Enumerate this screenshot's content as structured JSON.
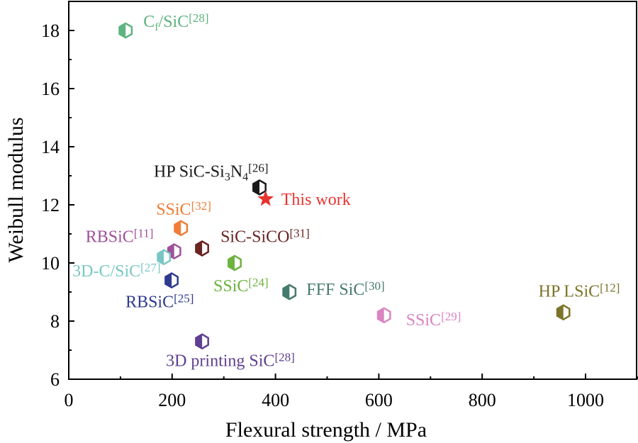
{
  "chart_data": {
    "type": "scatter",
    "title": "",
    "xlabel": "Flexural strength / MPa",
    "ylabel": "Weibull modulus",
    "xlim": [
      0,
      1100
    ],
    "ylim": [
      6,
      19
    ],
    "xticks": [
      "0",
      "200",
      "400",
      "600",
      "800",
      "1000"
    ],
    "xtick_values": [
      0,
      200,
      400,
      600,
      800,
      1000
    ],
    "yticks": [
      "6",
      "8",
      "10",
      "12",
      "14",
      "16",
      "18"
    ],
    "ytick_values": [
      6,
      8,
      10,
      12,
      14,
      16,
      18
    ],
    "grid": false,
    "points": [
      {
        "id": "cf-sic-28",
        "x": 110,
        "y": 18.0,
        "color": "#5db47f",
        "marker": "hexagon",
        "label": [
          {
            "t": "C"
          },
          {
            "t": "f",
            "sub": true
          },
          {
            "t": "/SiC"
          },
          {
            "t": "[28]",
            "sup": true
          }
        ]
      },
      {
        "id": "hp-sic-si3n4-26",
        "x": 369,
        "y": 12.6,
        "color": "#1a1a1a",
        "marker": "hexagon",
        "label": [
          {
            "t": "HP SiC-Si"
          },
          {
            "t": "3",
            "sub": true
          },
          {
            "t": "N"
          },
          {
            "t": "4",
            "sub": true
          },
          {
            "t": "[26]",
            "sup": true
          }
        ]
      },
      {
        "id": "this-work",
        "x": 381,
        "y": 12.2,
        "color": "#e8332f",
        "marker": "star",
        "label": [
          {
            "t": "This work"
          }
        ]
      },
      {
        "id": "ssic-32",
        "x": 217,
        "y": 11.2,
        "color": "#f07c35",
        "marker": "hexagon",
        "label": [
          {
            "t": "SSiC"
          },
          {
            "t": "[32]",
            "sup": true
          }
        ]
      },
      {
        "id": "rbsic-11",
        "x": 204,
        "y": 10.4,
        "color": "#a0509a",
        "marker": "hexagon",
        "label": [
          {
            "t": "RBSiC"
          },
          {
            "t": "[11]",
            "sup": true
          }
        ]
      },
      {
        "id": "sic-sico-31",
        "x": 258,
        "y": 10.5,
        "color": "#6b2424",
        "marker": "hexagon",
        "label": [
          {
            "t": "SiC-SiCO"
          },
          {
            "t": "[31]",
            "sup": true
          }
        ]
      },
      {
        "id": "3d-c-sic-27",
        "x": 184,
        "y": 10.2,
        "color": "#79c7c5",
        "marker": "hexagon",
        "label": [
          {
            "t": "3D-C/SiC"
          },
          {
            "t": "[27]",
            "sup": true
          }
        ]
      },
      {
        "id": "ssic-24",
        "x": 321,
        "y": 10.0,
        "color": "#6db33f",
        "marker": "hexagon",
        "label": [
          {
            "t": "SSiC"
          },
          {
            "t": "[24]",
            "sup": true
          }
        ]
      },
      {
        "id": "rbsic-25",
        "x": 199,
        "y": 9.4,
        "color": "#2f3b8f",
        "marker": "hexagon",
        "label": [
          {
            "t": "RBSiC"
          },
          {
            "t": "[25]",
            "sup": true
          }
        ]
      },
      {
        "id": "fff-sic-30",
        "x": 427,
        "y": 9.0,
        "color": "#457a6e",
        "marker": "hexagon",
        "label": [
          {
            "t": "FFF SiC"
          },
          {
            "t": "[30]",
            "sup": true
          }
        ]
      },
      {
        "id": "ssic-29",
        "x": 610,
        "y": 8.2,
        "color": "#d985c0",
        "marker": "hexagon",
        "label": [
          {
            "t": "SSiC"
          },
          {
            "t": "[29]",
            "sup": true
          }
        ]
      },
      {
        "id": "hp-lsic-12",
        "x": 957,
        "y": 8.3,
        "color": "#7d7329",
        "marker": "hexagon",
        "label": [
          {
            "t": "HP LSiC"
          },
          {
            "t": "[12]",
            "sup": true
          }
        ]
      },
      {
        "id": "3d-printing-sic-28",
        "x": 258,
        "y": 7.3,
        "color": "#5f3f8f",
        "marker": "hexagon",
        "label": [
          {
            "t": "3D printing SiC"
          },
          {
            "t": "[28]",
            "sup": true
          }
        ]
      }
    ]
  }
}
